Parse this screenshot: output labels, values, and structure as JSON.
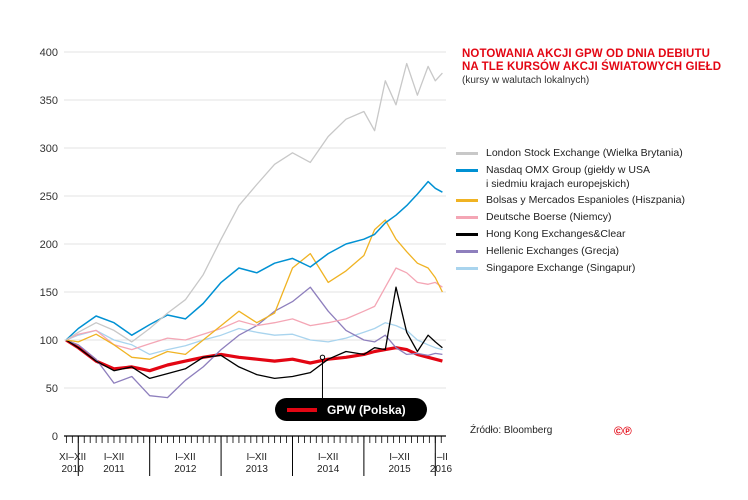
{
  "chart_data": {
    "type": "line",
    "title_line1": "NOTOWANIA AKCJI GPW OD DNIA DEBIUTU",
    "title_line2": "NA TLE KURSÓW AKCJI ŚWIATOWYCH GIEŁD",
    "subtitle": "(kursy w walutach lokalnych)",
    "xlabel": "",
    "ylabel": "",
    "ylim": [
      0,
      400
    ],
    "y_ticks": [
      0,
      50,
      100,
      150,
      200,
      250,
      300,
      350,
      400
    ],
    "x_range": [
      2010.8,
      2016.15
    ],
    "x_ticks": [
      {
        "label": "XI–XII",
        "year": "2010",
        "center": 2010.92
      },
      {
        "label": "I–XII",
        "year": "2011",
        "center": 2011.5
      },
      {
        "label": "I–XII",
        "year": "2012",
        "center": 2012.5
      },
      {
        "label": "I–XII",
        "year": "2013",
        "center": 2013.5
      },
      {
        "label": "I–XII",
        "year": "2014",
        "center": 2014.5
      },
      {
        "label": "I–XII",
        "year": "2015",
        "center": 2015.5
      },
      {
        "label": "I–II",
        "year": "2016",
        "center": 2016.08
      }
    ],
    "year_boundaries": [
      2011,
      2012,
      2013,
      2014,
      2015,
      2016
    ],
    "marker_x": 2014.42,
    "gpw_label": "GPW (Polska)",
    "source": "Źródło: Bloomberg",
    "copyright": "©℗",
    "x": [
      2010.83,
      2011.0,
      2011.25,
      2011.5,
      2011.75,
      2012.0,
      2012.25,
      2012.5,
      2012.75,
      2013.0,
      2013.25,
      2013.5,
      2013.75,
      2014.0,
      2014.25,
      2014.5,
      2014.75,
      2015.0,
      2015.15,
      2015.3,
      2015.45,
      2015.6,
      2015.75,
      2015.9,
      2016.0,
      2016.1
    ],
    "series": [
      {
        "name": "London Stock Exchange (Wielka Brytania)",
        "color": "#c8c8c8",
        "width": 1.3,
        "values": [
          100,
          108,
          118,
          110,
          98,
          112,
          128,
          142,
          168,
          205,
          240,
          262,
          283,
          295,
          285,
          312,
          330,
          338,
          318,
          370,
          345,
          388,
          355,
          385,
          370,
          378
        ]
      },
      {
        "name": "Nasdaq OMX Group (giełdy w USA\ni siedmiu krajach europejskich)",
        "color": "#0091d3",
        "width": 1.5,
        "values": [
          100,
          112,
          125,
          118,
          105,
          116,
          126,
          122,
          138,
          160,
          175,
          170,
          180,
          185,
          176,
          190,
          200,
          205,
          210,
          222,
          230,
          240,
          252,
          265,
          258,
          254
        ]
      },
      {
        "name": "Bolsas y Mercados Espanioles (Hiszpania)",
        "color": "#f0b323",
        "width": 1.3,
        "values": [
          100,
          98,
          106,
          95,
          82,
          80,
          88,
          85,
          100,
          115,
          130,
          118,
          128,
          175,
          190,
          160,
          172,
          188,
          215,
          225,
          205,
          192,
          180,
          175,
          165,
          150
        ]
      },
      {
        "name": "Deutsche Boerse (Niemcy)",
        "color": "#f4a6b5",
        "width": 1.3,
        "values": [
          100,
          106,
          110,
          95,
          90,
          96,
          102,
          100,
          106,
          112,
          120,
          115,
          118,
          122,
          115,
          118,
          122,
          130,
          135,
          155,
          175,
          170,
          160,
          158,
          160,
          155
        ]
      },
      {
        "name": "Hong Kong Exchanges&Clear",
        "color": "#000000",
        "width": 1.3,
        "values": [
          100,
          92,
          78,
          68,
          72,
          60,
          65,
          70,
          82,
          84,
          72,
          64,
          60,
          62,
          66,
          80,
          88,
          85,
          92,
          90,
          155,
          108,
          88,
          105,
          98,
          92
        ]
      },
      {
        "name": "Hellenic Exchanges (Grecja)",
        "color": "#8e7fbd",
        "width": 1.3,
        "values": [
          100,
          95,
          80,
          55,
          62,
          42,
          40,
          58,
          72,
          90,
          105,
          115,
          130,
          140,
          155,
          130,
          110,
          100,
          98,
          105,
          92,
          85,
          86,
          84,
          86,
          85
        ]
      },
      {
        "name": "Singapore Exchange (Singapur)",
        "color": "#a9d4ee",
        "width": 1.3,
        "values": [
          100,
          105,
          110,
          100,
          95,
          85,
          90,
          94,
          100,
          105,
          112,
          108,
          105,
          106,
          100,
          98,
          102,
          108,
          112,
          118,
          115,
          110,
          100,
          95,
          92,
          90
        ]
      },
      {
        "name": "GPW (Polska)",
        "color": "#e30613",
        "width": 3.2,
        "in_legend": false,
        "values": [
          100,
          92,
          78,
          70,
          72,
          68,
          74,
          78,
          82,
          85,
          82,
          80,
          78,
          80,
          76,
          80,
          82,
          85,
          88,
          90,
          92,
          90,
          85,
          82,
          80,
          78
        ]
      }
    ]
  }
}
